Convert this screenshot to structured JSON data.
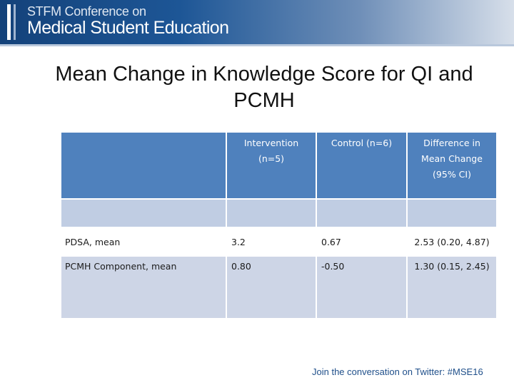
{
  "header": {
    "line1": "STFM Conference on",
    "line2": "Medical Student Education"
  },
  "title": "Mean Change in Knowledge Score for QI and PCMH",
  "table": {
    "columns": [
      "",
      "Intervention (n=5)",
      "Control (n=6)",
      "Difference in Mean Change (95% CI)"
    ],
    "rows": [
      [
        "PDSA, mean",
        "3.2",
        "0.67",
        "2.53 (0.20, 4.87)"
      ],
      [
        "PCMH Component, mean",
        "0.80",
        "-0.50",
        "1.30 (0.15, 2.45)"
      ]
    ]
  },
  "footer": "Join the conversation on Twitter: #MSE16",
  "colors": {
    "header_blue": "#1d5696",
    "table_header": "#4f81bd",
    "table_band": "#c0cde3",
    "table_row_alt": "#cdd5e6"
  }
}
